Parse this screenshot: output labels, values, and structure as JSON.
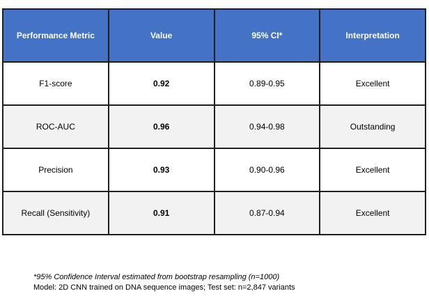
{
  "table": {
    "headers": [
      "Performance Metric",
      "Value",
      "95% CI*",
      "Interpretation"
    ],
    "rows": [
      {
        "metric": "F1-score",
        "value": "0.92",
        "ci": "0.89-0.95",
        "interpretation": "Excellent"
      },
      {
        "metric": "ROC-AUC",
        "value": "0.96",
        "ci": "0.94-0.98",
        "interpretation": "Outstanding"
      },
      {
        "metric": "Precision",
        "value": "0.93",
        "ci": "0.90-0.96",
        "interpretation": "Excellent"
      },
      {
        "metric": "Recall (Sensitivity)",
        "value": "0.91",
        "ci": "0.87-0.94",
        "interpretation": "Excellent"
      }
    ]
  },
  "footnotes": {
    "line1": "*95% Confidence Interval estimated from bootstrap resampling (n=1000)",
    "line2": "Model: 2D CNN trained on DNA sequence images; Test set: n=2,847 variants"
  },
  "colors": {
    "header_bg": "#4472C4",
    "header_text": "#FFFFFF",
    "row_bg": "#FFFFFF",
    "row_alt_bg": "#F2F2F2",
    "border": "#1F1F1F"
  }
}
